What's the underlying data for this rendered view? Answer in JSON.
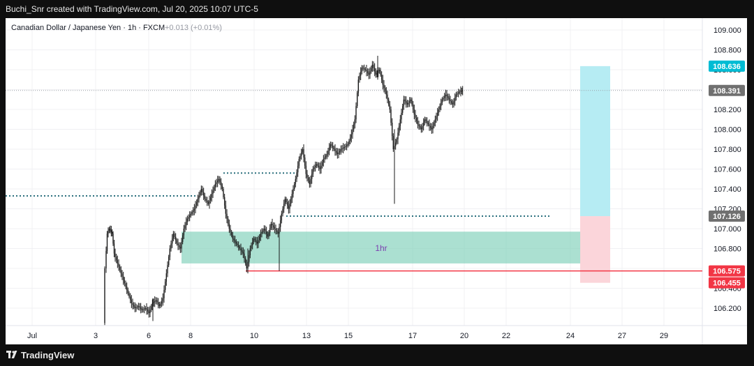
{
  "header": {
    "attribution": "Buchi_Snr created with TradingView.com, Jul 20, 2025 10:07 UTC-5"
  },
  "footer": {
    "brand": "TradingView"
  },
  "chart_data": {
    "type": "candlestick",
    "title": "Canadian Dollar / Japanese Yen · 1h · FXCM",
    "change": "+0.013 (+0.01%)",
    "ylim": [
      106.05,
      109.22
    ],
    "y_ticks": [
      "109.000",
      "108.800",
      "108.600",
      "108.400",
      "108.200",
      "108.000",
      "107.800",
      "107.600",
      "107.400",
      "107.200",
      "107.000",
      "106.800",
      "106.600",
      "106.400",
      "106.200"
    ],
    "x_ticks": [
      {
        "label": "Jul",
        "x": 46
      },
      {
        "label": "3",
        "x": 137
      },
      {
        "label": "6",
        "x": 213
      },
      {
        "label": "8",
        "x": 273
      },
      {
        "label": "10",
        "x": 364
      },
      {
        "label": "13",
        "x": 439
      },
      {
        "label": "15",
        "x": 499
      },
      {
        "label": "17",
        "x": 591
      },
      {
        "label": "20",
        "x": 665
      },
      {
        "label": "22",
        "x": 725
      },
      {
        "label": "24",
        "x": 817
      },
      {
        "label": "27",
        "x": 891
      },
      {
        "label": "29",
        "x": 951
      }
    ],
    "price_path": [
      [
        150,
        106.05
      ],
      [
        152,
        106.6
      ],
      [
        155,
        106.95
      ],
      [
        158,
        107.0
      ],
      [
        162,
        106.95
      ],
      [
        165,
        106.75
      ],
      [
        170,
        106.65
      ],
      [
        175,
        106.55
      ],
      [
        180,
        106.45
      ],
      [
        185,
        106.35
      ],
      [
        190,
        106.25
      ],
      [
        195,
        106.2
      ],
      [
        200,
        106.22
      ],
      [
        205,
        106.18
      ],
      [
        210,
        106.2
      ],
      [
        215,
        106.15
      ],
      [
        220,
        106.25
      ],
      [
        225,
        106.28
      ],
      [
        230,
        106.22
      ],
      [
        235,
        106.3
      ],
      [
        240,
        106.55
      ],
      [
        245,
        106.8
      ],
      [
        250,
        106.95
      ],
      [
        255,
        106.85
      ],
      [
        260,
        106.8
      ],
      [
        265,
        107.0
      ],
      [
        270,
        107.1
      ],
      [
        275,
        107.15
      ],
      [
        280,
        107.2
      ],
      [
        285,
        107.3
      ],
      [
        290,
        107.4
      ],
      [
        295,
        107.3
      ],
      [
        300,
        107.25
      ],
      [
        305,
        107.35
      ],
      [
        310,
        107.45
      ],
      [
        315,
        107.5
      ],
      [
        320,
        107.4
      ],
      [
        325,
        107.15
      ],
      [
        330,
        107.0
      ],
      [
        335,
        106.9
      ],
      [
        340,
        106.85
      ],
      [
        345,
        106.8
      ],
      [
        350,
        106.75
      ],
      [
        355,
        106.6
      ],
      [
        360,
        106.8
      ],
      [
        365,
        106.9
      ],
      [
        370,
        106.85
      ],
      [
        375,
        106.95
      ],
      [
        380,
        107.0
      ],
      [
        385,
        106.92
      ],
      [
        390,
        107.05
      ],
      [
        395,
        107.0
      ],
      [
        400,
        106.95
      ],
      [
        405,
        107.15
      ],
      [
        410,
        107.3
      ],
      [
        415,
        107.2
      ],
      [
        420,
        107.35
      ],
      [
        425,
        107.5
      ],
      [
        430,
        107.7
      ],
      [
        435,
        107.8
      ],
      [
        440,
        107.55
      ],
      [
        445,
        107.45
      ],
      [
        450,
        107.6
      ],
      [
        455,
        107.65
      ],
      [
        460,
        107.6
      ],
      [
        465,
        107.7
      ],
      [
        470,
        107.75
      ],
      [
        475,
        107.85
      ],
      [
        480,
        107.8
      ],
      [
        485,
        107.75
      ],
      [
        490,
        107.8
      ],
      [
        495,
        107.82
      ],
      [
        500,
        107.85
      ],
      [
        505,
        107.95
      ],
      [
        510,
        108.1
      ],
      [
        515,
        108.5
      ],
      [
        520,
        108.62
      ],
      [
        525,
        108.6
      ],
      [
        530,
        108.55
      ],
      [
        535,
        108.65
      ],
      [
        540,
        108.55
      ],
      [
        545,
        108.6
      ],
      [
        550,
        108.45
      ],
      [
        555,
        108.35
      ],
      [
        560,
        108.2
      ],
      [
        565,
        107.8
      ],
      [
        570,
        107.9
      ],
      [
        575,
        108.1
      ],
      [
        580,
        108.3
      ],
      [
        585,
        108.25
      ],
      [
        590,
        108.3
      ],
      [
        595,
        108.15
      ],
      [
        600,
        108.05
      ],
      [
        605,
        108.0
      ],
      [
        610,
        108.1
      ],
      [
        615,
        108.05
      ],
      [
        620,
        108.0
      ],
      [
        625,
        108.1
      ],
      [
        630,
        108.2
      ],
      [
        635,
        108.3
      ],
      [
        640,
        108.35
      ],
      [
        645,
        108.3
      ],
      [
        650,
        108.25
      ],
      [
        655,
        108.35
      ],
      [
        660,
        108.38
      ],
      [
        664,
        108.391
      ]
    ],
    "spikes": [
      {
        "x": 565,
        "low": 107.25,
        "high": 108.0
      },
      {
        "x": 541,
        "low": 108.5,
        "high": 108.74
      },
      {
        "x": 355,
        "low": 106.55,
        "high": 106.8
      },
      {
        "x": 219,
        "low": 106.07,
        "high": 106.3
      }
    ],
    "levels": [
      {
        "name": "dotted-level-1",
        "price": 107.33,
        "x1": 8,
        "x2": 280,
        "style": "dotted"
      },
      {
        "name": "dotted-level-2",
        "price": 107.56,
        "x1": 320,
        "x2": 425,
        "style": "dotted"
      },
      {
        "name": "dotted-level-3",
        "price": 107.126,
        "x1": 410,
        "x2": 790,
        "style": "dotted"
      },
      {
        "name": "red-level",
        "price": 106.575,
        "x1": 352,
        "x2": 1015,
        "style": "solid",
        "color": "#f23645"
      }
    ],
    "zone": {
      "label": "1hr",
      "price_top": 106.97,
      "price_bottom": 106.65,
      "x1": 260,
      "x2": 832,
      "color": "#7ecfb9"
    },
    "position": {
      "x1": 831,
      "x2": 874,
      "target": 108.636,
      "entry": 107.126,
      "stop": 106.455,
      "target_color": "#b2ebf2",
      "stop_color": "#fbd3d8"
    },
    "price_labels": [
      {
        "value": "108.636",
        "price": 108.636,
        "color": "#00bcd4"
      },
      {
        "value": "108.391",
        "price": 108.391,
        "color": "#707070"
      },
      {
        "value": "107.126",
        "price": 107.126,
        "color": "#707070"
      },
      {
        "value": "106.575",
        "price": 106.575,
        "color": "#f23645"
      },
      {
        "value": "106.455",
        "price": 106.455,
        "color": "#f23645"
      }
    ],
    "colors": {
      "candle": "#1a1a1a",
      "grid": "#f0f0f3",
      "axis_text": "#131722",
      "dotted": "#2a6f7d"
    }
  }
}
